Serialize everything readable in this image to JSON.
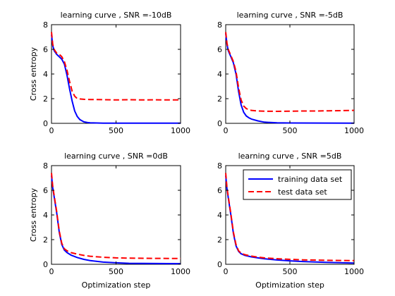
{
  "chart_data": [
    {
      "type": "line",
      "title": "learning curve , SNR =-10dB",
      "xlabel": "",
      "ylabel": "Cross entropy",
      "xlim": [
        0,
        1000
      ],
      "ylim": [
        0,
        8
      ],
      "xticks": [
        "0",
        "500",
        "1000"
      ],
      "yticks": [
        "0",
        "2",
        "4",
        "6",
        "8"
      ],
      "grid": false,
      "series": [
        {
          "color": "#0000ff",
          "dash": "solid",
          "x": [
            0,
            10,
            20,
            40,
            60,
            80,
            100,
            120,
            140,
            160,
            180,
            200,
            220,
            250,
            280,
            300,
            400,
            500,
            1000
          ],
          "y": [
            7.2,
            6.3,
            5.9,
            5.6,
            5.4,
            5.2,
            4.8,
            3.9,
            2.8,
            1.8,
            1.0,
            0.55,
            0.3,
            0.12,
            0.06,
            0.04,
            0.02,
            0.02,
            0.02
          ]
        },
        {
          "color": "#ff0000",
          "dash": "dashed",
          "x": [
            0,
            10,
            20,
            40,
            60,
            80,
            100,
            120,
            140,
            160,
            180,
            200,
            250,
            300,
            400,
            500,
            600,
            700,
            800,
            900,
            1000
          ],
          "y": [
            7.4,
            6.4,
            6.0,
            5.7,
            5.6,
            5.4,
            5.0,
            4.3,
            3.4,
            2.6,
            2.2,
            2.0,
            1.95,
            1.93,
            1.92,
            1.9,
            1.92,
            1.9,
            1.91,
            1.9,
            1.9
          ]
        }
      ]
    },
    {
      "type": "line",
      "title": "learning curve , SNR =-5dB",
      "xlabel": "",
      "ylabel": "",
      "xlim": [
        0,
        1000
      ],
      "ylim": [
        0,
        8
      ],
      "xticks": [
        "0",
        "500",
        "1000"
      ],
      "yticks": [
        "0",
        "2",
        "4",
        "6",
        "8"
      ],
      "grid": false,
      "series": [
        {
          "color": "#0000ff",
          "dash": "solid",
          "x": [
            0,
            10,
            20,
            40,
            60,
            80,
            100,
            120,
            140,
            160,
            180,
            200,
            250,
            300,
            400,
            500,
            1000
          ],
          "y": [
            7.3,
            6.4,
            5.9,
            5.4,
            4.9,
            4.0,
            2.6,
            1.5,
            0.9,
            0.6,
            0.45,
            0.35,
            0.2,
            0.1,
            0.04,
            0.03,
            0.02
          ]
        },
        {
          "color": "#ff0000",
          "dash": "dashed",
          "x": [
            0,
            10,
            20,
            40,
            60,
            80,
            100,
            120,
            140,
            160,
            180,
            200,
            250,
            300,
            400,
            500,
            600,
            700,
            800,
            900,
            1000
          ],
          "y": [
            7.4,
            6.5,
            6.0,
            5.5,
            5.0,
            4.2,
            2.9,
            1.9,
            1.4,
            1.2,
            1.1,
            1.05,
            1.0,
            0.98,
            0.97,
            0.98,
            1.0,
            1.0,
            1.02,
            1.03,
            1.05
          ]
        }
      ]
    },
    {
      "type": "line",
      "title": "learning curve , SNR =0dB",
      "xlabel": "Optimization step",
      "ylabel": "Cross entropy",
      "xlim": [
        0,
        1000
      ],
      "ylim": [
        0,
        8
      ],
      "xticks": [
        "0",
        "500",
        "1000"
      ],
      "yticks": [
        "0",
        "2",
        "4",
        "6",
        "8"
      ],
      "grid": false,
      "series": [
        {
          "color": "#0000ff",
          "dash": "solid",
          "x": [
            0,
            10,
            20,
            40,
            60,
            80,
            100,
            120,
            150,
            200,
            250,
            300,
            400,
            500,
            600,
            800,
            1000
          ],
          "y": [
            7.2,
            6.2,
            5.5,
            4.2,
            2.6,
            1.6,
            1.15,
            0.95,
            0.75,
            0.55,
            0.4,
            0.3,
            0.18,
            0.12,
            0.08,
            0.06,
            0.05
          ]
        },
        {
          "color": "#ff0000",
          "dash": "dashed",
          "x": [
            0,
            10,
            20,
            40,
            60,
            80,
            100,
            120,
            150,
            200,
            250,
            300,
            400,
            500,
            600,
            800,
            1000
          ],
          "y": [
            7.4,
            6.3,
            5.6,
            4.3,
            2.7,
            1.7,
            1.25,
            1.1,
            0.95,
            0.82,
            0.72,
            0.65,
            0.57,
            0.52,
            0.5,
            0.48,
            0.47
          ]
        }
      ]
    },
    {
      "type": "line",
      "title": "learning curve , SNR =5dB",
      "xlabel": "Optimization step",
      "ylabel": "",
      "xlim": [
        0,
        1000
      ],
      "ylim": [
        0,
        8
      ],
      "xticks": [
        "0",
        "500",
        "1000"
      ],
      "yticks": [
        "0",
        "2",
        "4",
        "6",
        "8"
      ],
      "grid": false,
      "legend": {
        "placement": "top-right",
        "entries": [
          {
            "label": "training data set",
            "color": "#0000ff",
            "dash": "solid"
          },
          {
            "label": "test data set",
            "color": "#ff0000",
            "dash": "dashed"
          }
        ]
      },
      "series": [
        {
          "color": "#0000ff",
          "dash": "solid",
          "x": [
            0,
            10,
            20,
            40,
            60,
            80,
            100,
            120,
            150,
            200,
            250,
            300,
            400,
            500,
            600,
            800,
            1000
          ],
          "y": [
            7.2,
            6.1,
            5.4,
            4.0,
            2.5,
            1.5,
            1.05,
            0.85,
            0.72,
            0.6,
            0.52,
            0.45,
            0.35,
            0.28,
            0.22,
            0.15,
            0.1
          ]
        },
        {
          "color": "#ff0000",
          "dash": "dashed",
          "x": [
            0,
            10,
            20,
            40,
            60,
            80,
            100,
            120,
            150,
            200,
            250,
            300,
            400,
            500,
            600,
            800,
            1000
          ],
          "y": [
            7.4,
            6.2,
            5.5,
            4.1,
            2.6,
            1.6,
            1.1,
            0.9,
            0.78,
            0.66,
            0.58,
            0.52,
            0.45,
            0.4,
            0.36,
            0.32,
            0.3
          ]
        }
      ]
    }
  ]
}
